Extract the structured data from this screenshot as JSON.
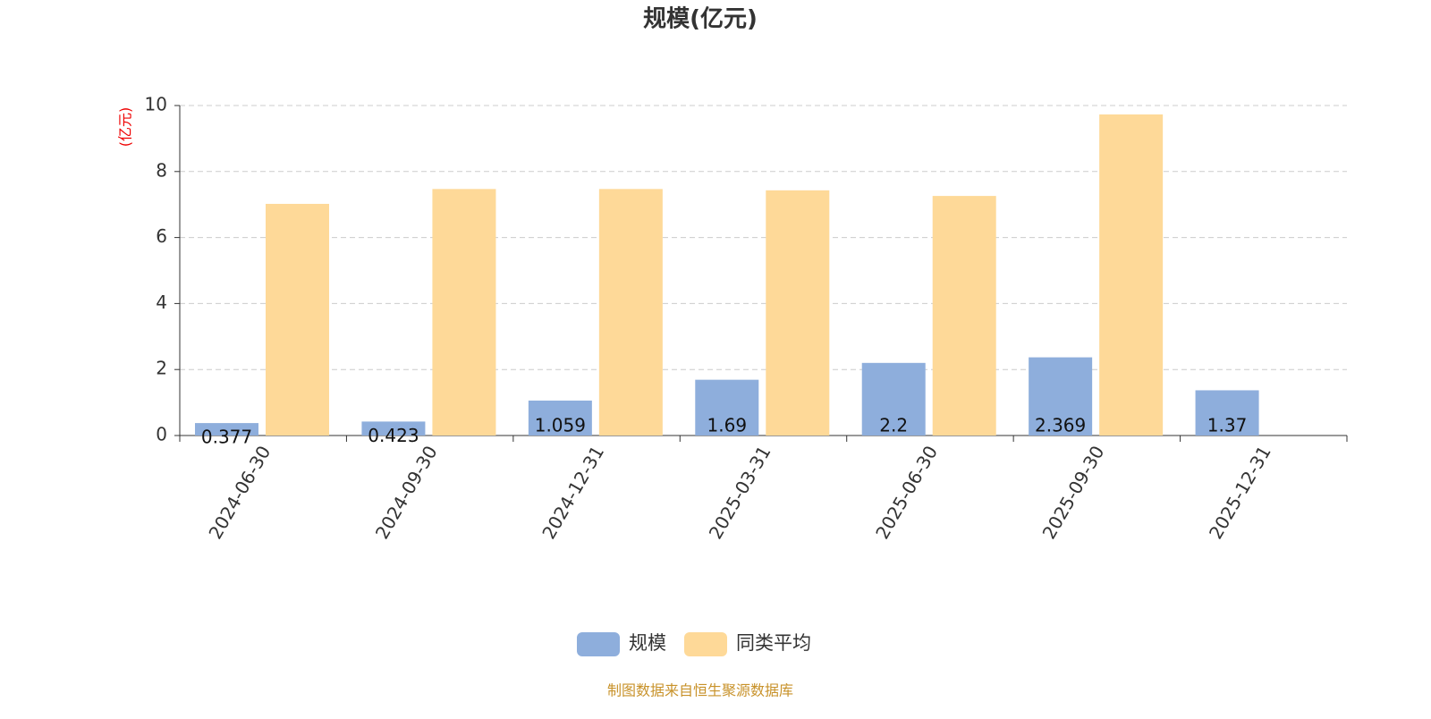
{
  "chart_data": {
    "type": "bar",
    "title": "规模(亿元)",
    "y_axis_label": "(亿元)",
    "categories": [
      "2024-06-30",
      "2024-09-30",
      "2024-12-31",
      "2025-03-31",
      "2025-06-30",
      "2025-09-30",
      "2025-12-31"
    ],
    "series": [
      {
        "name": "规模",
        "color": "#8eaedc",
        "values": [
          0.377,
          0.423,
          1.059,
          1.69,
          2.2,
          2.369,
          1.37
        ]
      },
      {
        "name": "同类平均",
        "color": "#fed998",
        "values": [
          7.02,
          7.47,
          7.47,
          7.43,
          7.26,
          9.73,
          null
        ]
      }
    ],
    "ylim": [
      0,
      10
    ],
    "yticks": [
      0,
      2,
      4,
      6,
      8,
      10
    ],
    "grid": true,
    "legend": "bottom",
    "source": "制图数据来自恒生聚源数据库"
  }
}
